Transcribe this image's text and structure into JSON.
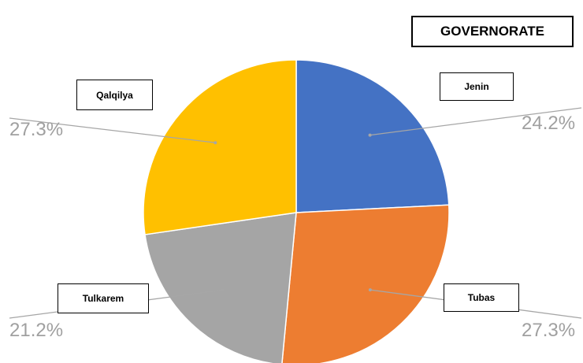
{
  "chart_data": {
    "type": "pie",
    "title": "GOVERNORATE",
    "categories": [
      "Jenin",
      "Tubas",
      "Tulkarem",
      "Qalqilya"
    ],
    "values": [
      24.2,
      27.3,
      21.2,
      27.3
    ],
    "value_labels": [
      "24.2%",
      "27.3%",
      "21.2%",
      "27.3%"
    ],
    "colors": [
      "#4472C4",
      "#ED7D31",
      "#A5A5A5",
      "#FFC000"
    ],
    "start_angle": "12 o'clock",
    "direction": "clockwise",
    "legend": "none",
    "label_style": "category boxes with leader lines and percentage labels"
  }
}
